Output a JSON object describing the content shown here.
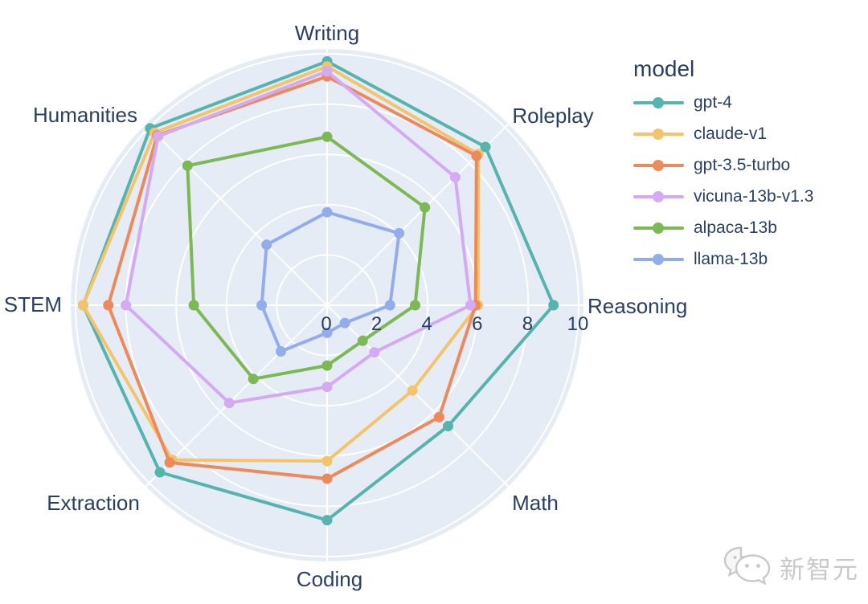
{
  "legend": {
    "title": "model"
  },
  "watermark": {
    "text": "新智元",
    "icon": "chat-bubbles-icon"
  },
  "chart_data": {
    "type": "line",
    "variant": "radar-polar",
    "title": "",
    "categories": [
      "Writing",
      "Roleplay",
      "Reasoning",
      "Math",
      "Coding",
      "Extraction",
      "STEM",
      "Humanities"
    ],
    "radial_axis": {
      "min": 0,
      "max": 10,
      "ticks": [
        0,
        2,
        4,
        6,
        8,
        10
      ],
      "tick_labels": [
        "0",
        "2",
        "4",
        "6",
        "8",
        "10"
      ]
    },
    "grid": true,
    "legend_position": "top-right",
    "plot_bg": "#e5ecf6",
    "grid_color": "#ffffff",
    "text_color": "#2a3f5f",
    "series": [
      {
        "name": "gpt-4",
        "color": "#56b3ae",
        "values": [
          9.7,
          8.9,
          9.0,
          6.8,
          8.55,
          9.4,
          9.7,
          9.95
        ]
      },
      {
        "name": "claude-v1",
        "color": "#f3c46c",
        "values": [
          9.5,
          8.5,
          6.0,
          4.8,
          6.2,
          8.7,
          9.7,
          9.7
        ]
      },
      {
        "name": "gpt-3.5-turbo",
        "color": "#eb8a5c",
        "values": [
          9.1,
          8.4,
          5.9,
          6.3,
          6.9,
          8.85,
          8.7,
          9.55
        ]
      },
      {
        "name": "vicuna-13b-v1.3",
        "color": "#d5aaf2",
        "values": [
          9.3,
          7.2,
          5.7,
          2.65,
          3.25,
          5.5,
          8.0,
          9.5
        ]
      },
      {
        "name": "alpaca-13b",
        "color": "#7cb853",
        "values": [
          6.7,
          5.5,
          3.5,
          2.0,
          2.4,
          4.15,
          5.3,
          7.85
        ]
      },
      {
        "name": "llama-13b",
        "color": "#93adec",
        "values": [
          3.7,
          4.05,
          2.5,
          1.0,
          1.1,
          2.6,
          2.6,
          3.4
        ]
      }
    ]
  }
}
